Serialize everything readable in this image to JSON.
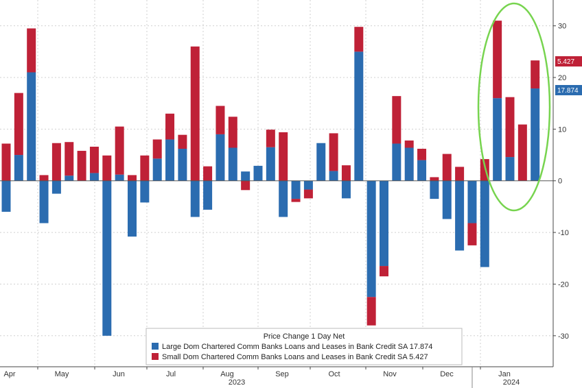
{
  "chart_data": {
    "type": "bar",
    "stacked": true,
    "legend_title": "Price Change 1 Day Net",
    "series": [
      {
        "name": "Large Dom Chartered Comm Banks Loans and Leases in Bank Credit SA",
        "last_value": "17.874",
        "color": "#2b6cb0",
        "values": [
          -6,
          5,
          21,
          -8.2,
          -2.5,
          1,
          0,
          1.5,
          -30,
          1.2,
          -10.8,
          -4.2,
          4.3,
          8,
          6.2,
          -7,
          -5.6,
          9,
          6.4,
          1.8,
          2.9,
          6.5,
          -7,
          -3.5,
          -1.7,
          7.3,
          1.9,
          -3.4,
          25,
          -22.5,
          -16.5,
          7.2,
          6.4,
          4,
          -3.5,
          -7.4,
          -13.5,
          -8.2,
          -16.7,
          16,
          4.6,
          0,
          17.874
        ]
      },
      {
        "name": "Small Dom Chartered Comm Banks Loans and Leases in Bank Credit SA",
        "last_value": "5.427",
        "color": "#bf2137",
        "values": [
          7.2,
          12,
          8.5,
          1.1,
          7.3,
          6.5,
          5.8,
          5.1,
          4.9,
          9.3,
          1.1,
          4.9,
          3.7,
          5,
          2.7,
          26,
          2.8,
          5.5,
          6,
          -1.8,
          0,
          3.4,
          9.4,
          -0.6,
          -1.7,
          0,
          7.3,
          3,
          4.8,
          -5.5,
          -2,
          9.2,
          1.4,
          2.2,
          0.7,
          5.2,
          2.7,
          -4.3,
          4.2,
          15,
          11.6,
          10.9,
          5.427
        ]
      }
    ],
    "xlabel": "2023",
    "x_year_label_2": "2024",
    "month_labels": [
      "Apr",
      "May",
      "Jun",
      "Jul",
      "Aug",
      "Sep",
      "Oct",
      "Nov",
      "Dec",
      "Jan"
    ],
    "ylim": [
      -36,
      35
    ],
    "yticks": [
      "30",
      "20",
      "10",
      "0",
      "-10",
      "-20",
      "-30"
    ],
    "grid": true,
    "legend_position": "bottom-right",
    "annotation": "green ellipse around January 2024 bars"
  }
}
